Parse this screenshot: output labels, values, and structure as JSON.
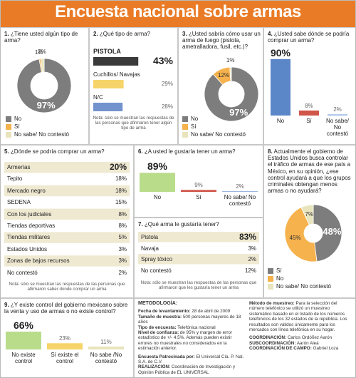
{
  "title": "Encuesta nacional sobre armas",
  "chart_data": [
    {
      "type": "donut",
      "number": "1.",
      "question": "¿Tiene usted algún tipo de arma?",
      "categories": [
        "No",
        "Sí",
        "No sabe/ No contestó"
      ],
      "values": [
        97,
        1,
        2
      ],
      "value_labels": [
        "97%",
        "1%",
        "2%"
      ],
      "colors": [
        "#7d7d7d",
        "#f6b24d",
        "#e8e4bd"
      ]
    },
    {
      "type": "hbar",
      "number": "2.",
      "question": "¿Qué tipo de arma?",
      "categories": [
        "PISTOLA",
        "Cuchillos/ Navajas",
        "N/C"
      ],
      "values": [
        43,
        29,
        28
      ],
      "value_labels": [
        "43%",
        "29%",
        "28%"
      ],
      "colors": [
        "#3a3a3a",
        "#f6d46a",
        "#7393cf"
      ],
      "note": "Nota: sólo se muestran las respuestas de las personas que afirmaron tener algún tipo de arma"
    },
    {
      "type": "donut",
      "number": "3.",
      "question": "¿Usted sabría cómo usar un arma de fuego (pistola, ametralladora, fusil, etc.)?",
      "categories": [
        "No",
        "Sí",
        "No sabe/ No contestó"
      ],
      "values": [
        97,
        12,
        1
      ],
      "value_labels": [
        "97%",
        "12%",
        "1%"
      ],
      "colors": [
        "#7d7d7d",
        "#f6b24d",
        "#e8e4bd"
      ]
    },
    {
      "type": "bar",
      "number": "4.",
      "question": "¿Usted sabe dónde se podría comprar un arma?",
      "categories": [
        "No",
        "Sí",
        "No sabe/ No contestó"
      ],
      "values": [
        90,
        8,
        2
      ],
      "value_labels": [
        "90%",
        "8%",
        "2%"
      ],
      "colors": [
        "#5b86c8",
        "#d0564a",
        "#9fbde6"
      ]
    },
    {
      "type": "table",
      "number": "5.",
      "question": "¿Dónde se podría comprar un arma?",
      "categories": [
        "Armerías",
        "Tepito",
        "Mercado negro",
        "SEDENA",
        "Con los judiciales",
        "Tiendas deportivas",
        "Tiendas militares",
        "Estados Unidos",
        "Zonas de bajos recursos",
        "No contestó"
      ],
      "values": [
        20,
        18,
        18,
        15,
        8,
        8,
        5,
        3,
        3,
        2
      ],
      "value_labels": [
        "20%",
        "18%",
        "18%",
        "15%",
        "8%",
        "8%",
        "5%",
        "3%",
        "3%",
        "2%"
      ],
      "note": "Nota: sólo se muestran las respuestas de las personas que afirmaron saber donde comprar un arma"
    },
    {
      "type": "bar",
      "number": "6.",
      "question": "¿A usted le gustaría tener un arma?",
      "categories": [
        "No",
        "Sí",
        "No sabe/ No contestó"
      ],
      "values": [
        89,
        9,
        2
      ],
      "value_labels": [
        "89%",
        "9%",
        "2%"
      ],
      "colors": [
        "#b9dc8a",
        "#d0564a",
        "#5b86c8"
      ]
    },
    {
      "type": "table",
      "number": "7.",
      "question": "¿Qué arma le gustaría tener?",
      "categories": [
        "Pistola",
        "Navaja",
        "Spray tóxico",
        "No contestó"
      ],
      "values": [
        83,
        3,
        2,
        12
      ],
      "value_labels": [
        "83%",
        "3%",
        "2%",
        "12%"
      ],
      "note": "Nota: sólo se muestran las respuestas de las personas que afirmaron que les gustaría tener un arma"
    },
    {
      "type": "donut",
      "number": "8.",
      "question": "Actualmente el gobierno de Estados Unidos busca controlar el tráfico de armas de ese país a México, en su opinión, ¿ese control ayudará a que los grupos criminales obtengan menos armas o no ayudará?",
      "categories": [
        "Sí",
        "No",
        "No sabe/ No contestó"
      ],
      "values": [
        48,
        45,
        7
      ],
      "value_labels": [
        "48%",
        "45%",
        "7%"
      ],
      "colors": [
        "#7d7d7d",
        "#f6b24d",
        "#e8e4bd"
      ]
    },
    {
      "type": "bar",
      "number": "9.",
      "question": "¿Y existe control del gobierno mexicano sobre la venta y uso de armas o no existe control?",
      "categories": [
        "No existe control",
        "Sí existe el control",
        "No sabe /No contestó"
      ],
      "values": [
        66,
        23,
        11
      ],
      "value_labels": [
        "66%",
        "23%",
        "11%"
      ],
      "colors": [
        "#b9dc8a",
        "#f6d46a",
        "#e8e4bd"
      ]
    }
  ],
  "methodology": {
    "heading": "METODOLOGÍA:",
    "details": [
      {
        "label": "Fecha de levantamiento:",
        "text": "28 de abril de 2009"
      },
      {
        "label": "Tamaño de muestra:",
        "text": "500 personas mayores de 18 años"
      },
      {
        "label": "Tipo de encuesta:",
        "text": "Telefónica nacional"
      },
      {
        "label": "Nivel de confianza:",
        "text": "de 95% y margen de error estadístico de +/- 4.5%. Además pueden existir errores no muestrales no considerados en la estimación anterior."
      }
    ],
    "sponsors": [
      {
        "label": "Encuesta Patrocinada por:",
        "text": "El Universal Cía. P. Nal. S.A. de C.V."
      },
      {
        "label": "REALIZACIÓN:",
        "text": "Coordinación de Investigación y Opinión Pública de EL UNIVERSAL"
      }
    ],
    "sampling": {
      "label": "Método de muestreo:",
      "text": "Para la selección del número telefónico se utilizó un muestreo sistemático basado en el listado de los números telefónicos de los 32 estados de la república. Los resultados son válidos únicamente para los mercados con línea telefónica en su hogar."
    },
    "credits": [
      {
        "label": "COORDINACIÓN:",
        "text": "Carlos Ordóñez Aarón"
      },
      {
        "label": "SUBCOORDINACIÓN:",
        "text": "Aarón Aleá"
      },
      {
        "label": "COORDINACIÓN DE CAMPO:",
        "text": "Gabriel Loza"
      }
    ]
  }
}
